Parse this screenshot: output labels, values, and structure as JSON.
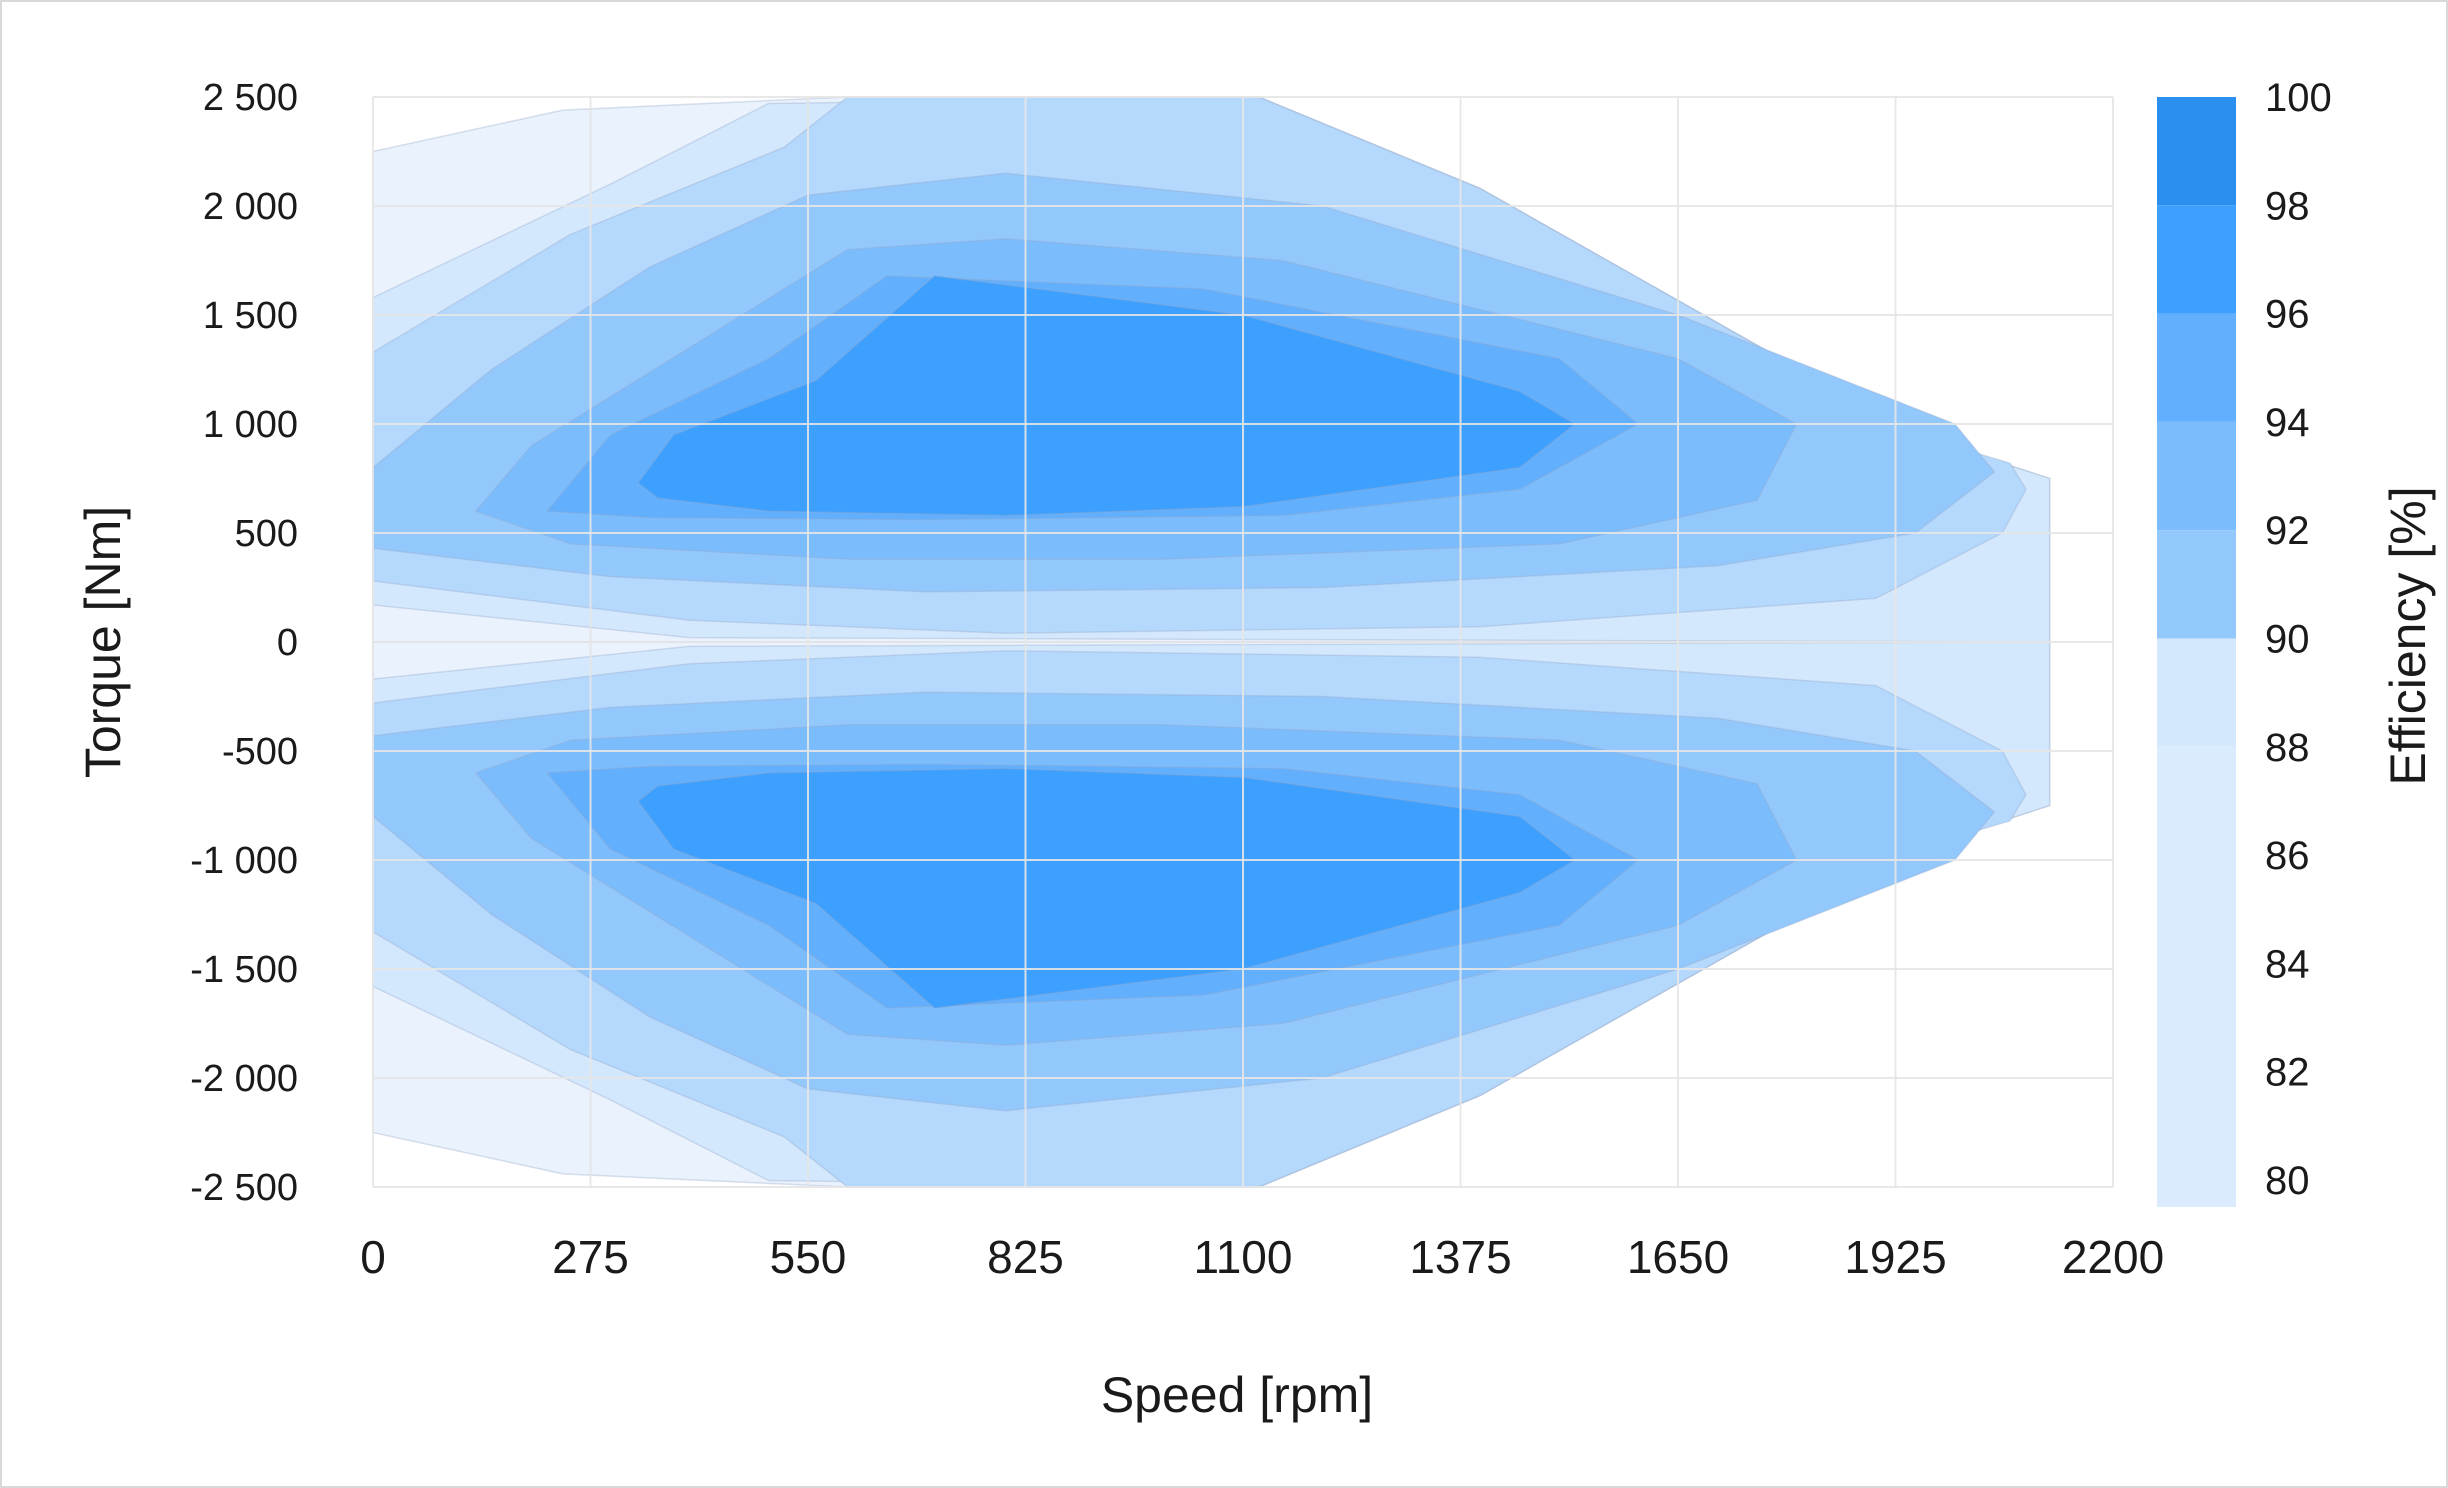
{
  "chart_data": {
    "type": "contour",
    "title": "",
    "xlabel": "Speed [rpm]",
    "ylabel": "Torque [Nm]",
    "colorbar_label": "Efficiency [%]",
    "xlim": [
      0,
      2200
    ],
    "ylim": [
      -2500,
      2500
    ],
    "x_ticks": [
      "0",
      "275",
      "550",
      "825",
      "1100",
      "1375",
      "1650",
      "1925",
      "2200"
    ],
    "x_tick_values": [
      0,
      275,
      550,
      825,
      1100,
      1375,
      1650,
      1925,
      2200
    ],
    "y_ticks": [
      "2 500",
      "2 000",
      "1 500",
      "1 000",
      "500",
      "0",
      "-500",
      "-1 000",
      "-1 500",
      "-2 000",
      "-2 500"
    ],
    "y_tick_values": [
      2500,
      2000,
      1500,
      1000,
      500,
      0,
      -500,
      -1000,
      -1500,
      -2000,
      -2500
    ],
    "colorbar_ticks": [
      "100",
      "98",
      "96",
      "94",
      "92",
      "90",
      "88",
      "86",
      "84",
      "82",
      "80"
    ],
    "colorbar_tick_values": [
      100,
      98,
      96,
      94,
      92,
      90,
      88,
      86,
      84,
      82,
      80
    ],
    "colorbar_range": [
      79.5,
      100
    ],
    "grid": true,
    "envelope": {
      "max_torque": 2500,
      "constant_torque_until_speed": 1120,
      "max_speed": 2120,
      "torque_at_max_speed": 750
    },
    "efficiency_bands": [
      {
        "level": 80,
        "color": "#e9f2fd",
        "outline": [
          [
            0,
            2250
          ],
          [
            240,
            2440
          ],
          [
            600,
            2500
          ],
          [
            1120,
            2500
          ],
          [
            1400,
            2080
          ],
          [
            1950,
            950
          ],
          [
            2120,
            750
          ],
          [
            2120,
            0
          ],
          [
            0,
            0
          ]
        ]
      },
      {
        "level": 88,
        "color": "#d4e8fd",
        "outline": [
          [
            0,
            1580
          ],
          [
            300,
            2100
          ],
          [
            500,
            2470
          ],
          [
            1120,
            2500
          ],
          [
            1400,
            2080
          ],
          [
            1950,
            950
          ],
          [
            2120,
            750
          ],
          [
            2120,
            0
          ],
          [
            400,
            20
          ],
          [
            0,
            170
          ]
        ]
      },
      {
        "level": 90,
        "color": "#b5d8fd",
        "outline": [
          [
            0,
            1330
          ],
          [
            250,
            1870
          ],
          [
            520,
            2270
          ],
          [
            600,
            2500
          ],
          [
            1120,
            2500
          ],
          [
            1400,
            2080
          ],
          [
            1950,
            950
          ],
          [
            2070,
            820
          ],
          [
            2090,
            700
          ],
          [
            2060,
            500
          ],
          [
            1900,
            200
          ],
          [
            1400,
            70
          ],
          [
            800,
            40
          ],
          [
            400,
            100
          ],
          [
            0,
            280
          ]
        ]
      },
      {
        "level": 92,
        "color": "#93c8fd",
        "outline": [
          [
            0,
            800
          ],
          [
            150,
            1250
          ],
          [
            350,
            1720
          ],
          [
            550,
            2050
          ],
          [
            800,
            2150
          ],
          [
            1200,
            2000
          ],
          [
            1650,
            1500
          ],
          [
            2000,
            1000
          ],
          [
            2050,
            780
          ],
          [
            1950,
            500
          ],
          [
            1700,
            350
          ],
          [
            1200,
            250
          ],
          [
            700,
            230
          ],
          [
            300,
            300
          ],
          [
            0,
            430
          ]
        ]
      },
      {
        "level": 94,
        "color": "#7bbcfd",
        "outline": [
          [
            130,
            600
          ],
          [
            200,
            900
          ],
          [
            400,
            1350
          ],
          [
            600,
            1800
          ],
          [
            800,
            1850
          ],
          [
            1150,
            1750
          ],
          [
            1650,
            1300
          ],
          [
            1800,
            1000
          ],
          [
            1750,
            650
          ],
          [
            1500,
            450
          ],
          [
            1000,
            380
          ],
          [
            600,
            380
          ],
          [
            250,
            450
          ]
        ]
      },
      {
        "level": 96,
        "color": "#62affd",
        "outline": [
          [
            220,
            600
          ],
          [
            300,
            950
          ],
          [
            500,
            1300
          ],
          [
            650,
            1680
          ],
          [
            1050,
            1620
          ],
          [
            1500,
            1300
          ],
          [
            1600,
            1000
          ],
          [
            1450,
            700
          ],
          [
            1150,
            580
          ],
          [
            700,
            560
          ],
          [
            350,
            570
          ]
        ]
      },
      {
        "level": 98,
        "color": "#3ea0fe",
        "outline": [
          [
            335,
            730
          ],
          [
            380,
            950
          ],
          [
            560,
            1200
          ],
          [
            710,
            1680
          ],
          [
            1100,
            1500
          ],
          [
            1450,
            1150
          ],
          [
            1520,
            1000
          ],
          [
            1450,
            800
          ],
          [
            1100,
            620
          ],
          [
            800,
            580
          ],
          [
            500,
            600
          ],
          [
            360,
            660
          ]
        ]
      }
    ]
  }
}
